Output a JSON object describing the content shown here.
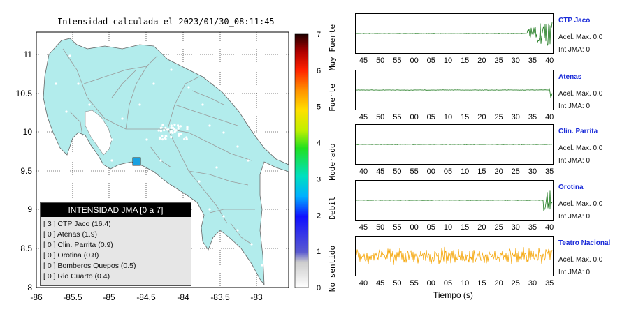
{
  "map": {
    "title": "Intensidad calculada el 2023/01/30_08:11:45",
    "lon_ticks": [
      "-86",
      "-85.5",
      "-85",
      "-84.5",
      "-84",
      "-83.5",
      "-83"
    ],
    "lat_ticks": [
      "11",
      "10.5",
      "10",
      "9.5",
      "9",
      "8.5",
      "8"
    ],
    "epicenter_color": "#1aa0e0",
    "land_color": "#b2ecec"
  },
  "intensity_scale": {
    "ticks": [
      "0",
      "1",
      "2",
      "3",
      "4",
      "5",
      "6",
      "7"
    ],
    "labels": [
      "No sentido",
      "Debil",
      "Moderado",
      "Fuerte",
      "Muy Fuerte"
    ]
  },
  "legend": {
    "title": "INTENSIDAD JMA [0 a 7]",
    "rows": [
      "[ 3 ] CTP Jaco (16.4)",
      "[ 0 ] Atenas (1.9)",
      "[ 0 ] Clin. Parrita (0.9)",
      "[ 0 ] Orotina (0.8)",
      "[ 0 ] Bomberos Quepos (0.5)",
      "[ 0 ] Rio Cuarto (0.4)"
    ]
  },
  "stations": [
    {
      "name": "CTP Jaco",
      "acel": "Acel. Max. 0.0",
      "int": "Int JMA: 0",
      "ticks": [
        "45",
        "50",
        "55",
        "00",
        "05",
        "10",
        "15",
        "20",
        "25",
        "30",
        "35",
        "40"
      ],
      "burst": "end-big"
    },
    {
      "name": "Atenas",
      "acel": "Acel. Max. 0.0",
      "int": "Int JMA: 0",
      "ticks": [
        "45",
        "50",
        "55",
        "00",
        "05",
        "10",
        "15",
        "20",
        "25",
        "30",
        "35",
        "40"
      ],
      "burst": "end-small"
    },
    {
      "name": "Clin. Parrita",
      "acel": "Acel. Max. 0.0",
      "int": "Int JMA: 0",
      "ticks": [
        "40",
        "45",
        "50",
        "55",
        "00",
        "05",
        "10",
        "15",
        "20",
        "25",
        "30",
        "35"
      ],
      "burst": "none"
    },
    {
      "name": "Orotina",
      "acel": "Acel. Max. 0.0",
      "int": "Int JMA: 0",
      "ticks": [
        "45",
        "50",
        "55",
        "00",
        "05",
        "10",
        "15",
        "20",
        "25",
        "30",
        "35",
        "40"
      ],
      "burst": "end-mid"
    },
    {
      "name": "Teatro Nacional",
      "acel": "Acel. Max. 0.0",
      "int": "Int JMA: 0",
      "ticks": [
        "40",
        "45",
        "50",
        "55",
        "00",
        "05",
        "10",
        "15",
        "20",
        "25",
        "30",
        "35"
      ],
      "burst": "noise"
    }
  ],
  "time_axis_label": "Tiempo (s)",
  "colors": {
    "wave_green": "#1f7a1f",
    "wave_orange": "#f5a300",
    "station_blue": "#1a2bd8"
  }
}
